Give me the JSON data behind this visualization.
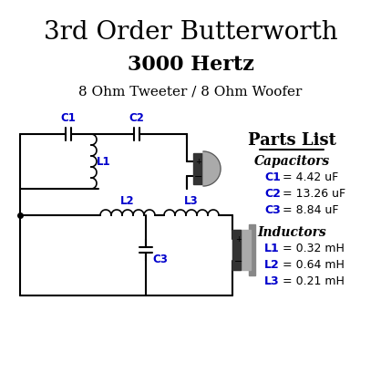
{
  "title": "3rd Order Butterworth",
  "subtitle": "3000 Hertz",
  "impedance_label": "8 Ohm Tweeter / 8 Ohm Woofer",
  "parts_list_title": "Parts List",
  "capacitors_title": "Capacitors",
  "inductors_title": "Inductors",
  "cap_labels": [
    "C1 = 4.42 uF",
    "C2 = 13.26 uF",
    "C3 = 8.84 uF"
  ],
  "ind_labels": [
    "L1 = 0.32 mH",
    "L2 = 0.64 mH",
    "L3 = 0.21 mH"
  ],
  "bg_color": "#ffffff",
  "line_color": "#000000",
  "blue_color": "#0000cc",
  "title_fontsize": 20,
  "subtitle_fontsize": 16,
  "label_fontsize": 11
}
